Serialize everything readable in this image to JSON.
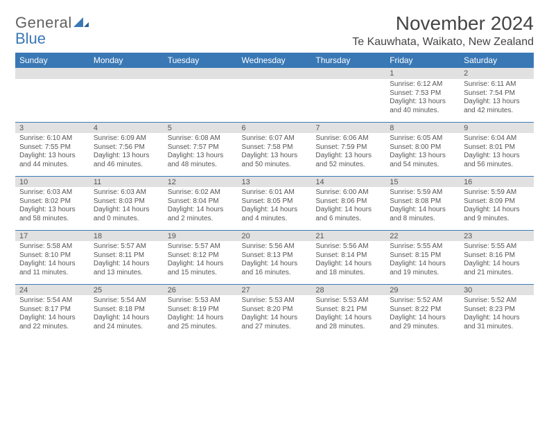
{
  "brand": {
    "line1": "General",
    "line2": "Blue"
  },
  "title": "November 2024",
  "location": "Te Kauwhata, Waikato, New Zealand",
  "colors": {
    "header_bar": "#3a78b5",
    "daynum_bg": "#e1e1e1",
    "text": "#555555",
    "brand_grey": "#606060",
    "brand_blue": "#3a78b5"
  },
  "typography": {
    "title_fontsize_pt": 21,
    "location_fontsize_pt": 12,
    "dow_fontsize_pt": 9,
    "daynum_fontsize_pt": 8.5,
    "detail_fontsize_pt": 7.5
  },
  "days_of_week": [
    "Sunday",
    "Monday",
    "Tuesday",
    "Wednesday",
    "Thursday",
    "Friday",
    "Saturday"
  ],
  "weeks": [
    [
      null,
      null,
      null,
      null,
      null,
      {
        "n": "1",
        "sr": "Sunrise: 6:12 AM",
        "ss": "Sunset: 7:53 PM",
        "d1": "Daylight: 13 hours",
        "d2": "and 40 minutes."
      },
      {
        "n": "2",
        "sr": "Sunrise: 6:11 AM",
        "ss": "Sunset: 7:54 PM",
        "d1": "Daylight: 13 hours",
        "d2": "and 42 minutes."
      }
    ],
    [
      {
        "n": "3",
        "sr": "Sunrise: 6:10 AM",
        "ss": "Sunset: 7:55 PM",
        "d1": "Daylight: 13 hours",
        "d2": "and 44 minutes."
      },
      {
        "n": "4",
        "sr": "Sunrise: 6:09 AM",
        "ss": "Sunset: 7:56 PM",
        "d1": "Daylight: 13 hours",
        "d2": "and 46 minutes."
      },
      {
        "n": "5",
        "sr": "Sunrise: 6:08 AM",
        "ss": "Sunset: 7:57 PM",
        "d1": "Daylight: 13 hours",
        "d2": "and 48 minutes."
      },
      {
        "n": "6",
        "sr": "Sunrise: 6:07 AM",
        "ss": "Sunset: 7:58 PM",
        "d1": "Daylight: 13 hours",
        "d2": "and 50 minutes."
      },
      {
        "n": "7",
        "sr": "Sunrise: 6:06 AM",
        "ss": "Sunset: 7:59 PM",
        "d1": "Daylight: 13 hours",
        "d2": "and 52 minutes."
      },
      {
        "n": "8",
        "sr": "Sunrise: 6:05 AM",
        "ss": "Sunset: 8:00 PM",
        "d1": "Daylight: 13 hours",
        "d2": "and 54 minutes."
      },
      {
        "n": "9",
        "sr": "Sunrise: 6:04 AM",
        "ss": "Sunset: 8:01 PM",
        "d1": "Daylight: 13 hours",
        "d2": "and 56 minutes."
      }
    ],
    [
      {
        "n": "10",
        "sr": "Sunrise: 6:03 AM",
        "ss": "Sunset: 8:02 PM",
        "d1": "Daylight: 13 hours",
        "d2": "and 58 minutes."
      },
      {
        "n": "11",
        "sr": "Sunrise: 6:03 AM",
        "ss": "Sunset: 8:03 PM",
        "d1": "Daylight: 14 hours",
        "d2": "and 0 minutes."
      },
      {
        "n": "12",
        "sr": "Sunrise: 6:02 AM",
        "ss": "Sunset: 8:04 PM",
        "d1": "Daylight: 14 hours",
        "d2": "and 2 minutes."
      },
      {
        "n": "13",
        "sr": "Sunrise: 6:01 AM",
        "ss": "Sunset: 8:05 PM",
        "d1": "Daylight: 14 hours",
        "d2": "and 4 minutes."
      },
      {
        "n": "14",
        "sr": "Sunrise: 6:00 AM",
        "ss": "Sunset: 8:06 PM",
        "d1": "Daylight: 14 hours",
        "d2": "and 6 minutes."
      },
      {
        "n": "15",
        "sr": "Sunrise: 5:59 AM",
        "ss": "Sunset: 8:08 PM",
        "d1": "Daylight: 14 hours",
        "d2": "and 8 minutes."
      },
      {
        "n": "16",
        "sr": "Sunrise: 5:59 AM",
        "ss": "Sunset: 8:09 PM",
        "d1": "Daylight: 14 hours",
        "d2": "and 9 minutes."
      }
    ],
    [
      {
        "n": "17",
        "sr": "Sunrise: 5:58 AM",
        "ss": "Sunset: 8:10 PM",
        "d1": "Daylight: 14 hours",
        "d2": "and 11 minutes."
      },
      {
        "n": "18",
        "sr": "Sunrise: 5:57 AM",
        "ss": "Sunset: 8:11 PM",
        "d1": "Daylight: 14 hours",
        "d2": "and 13 minutes."
      },
      {
        "n": "19",
        "sr": "Sunrise: 5:57 AM",
        "ss": "Sunset: 8:12 PM",
        "d1": "Daylight: 14 hours",
        "d2": "and 15 minutes."
      },
      {
        "n": "20",
        "sr": "Sunrise: 5:56 AM",
        "ss": "Sunset: 8:13 PM",
        "d1": "Daylight: 14 hours",
        "d2": "and 16 minutes."
      },
      {
        "n": "21",
        "sr": "Sunrise: 5:56 AM",
        "ss": "Sunset: 8:14 PM",
        "d1": "Daylight: 14 hours",
        "d2": "and 18 minutes."
      },
      {
        "n": "22",
        "sr": "Sunrise: 5:55 AM",
        "ss": "Sunset: 8:15 PM",
        "d1": "Daylight: 14 hours",
        "d2": "and 19 minutes."
      },
      {
        "n": "23",
        "sr": "Sunrise: 5:55 AM",
        "ss": "Sunset: 8:16 PM",
        "d1": "Daylight: 14 hours",
        "d2": "and 21 minutes."
      }
    ],
    [
      {
        "n": "24",
        "sr": "Sunrise: 5:54 AM",
        "ss": "Sunset: 8:17 PM",
        "d1": "Daylight: 14 hours",
        "d2": "and 22 minutes."
      },
      {
        "n": "25",
        "sr": "Sunrise: 5:54 AM",
        "ss": "Sunset: 8:18 PM",
        "d1": "Daylight: 14 hours",
        "d2": "and 24 minutes."
      },
      {
        "n": "26",
        "sr": "Sunrise: 5:53 AM",
        "ss": "Sunset: 8:19 PM",
        "d1": "Daylight: 14 hours",
        "d2": "and 25 minutes."
      },
      {
        "n": "27",
        "sr": "Sunrise: 5:53 AM",
        "ss": "Sunset: 8:20 PM",
        "d1": "Daylight: 14 hours",
        "d2": "and 27 minutes."
      },
      {
        "n": "28",
        "sr": "Sunrise: 5:53 AM",
        "ss": "Sunset: 8:21 PM",
        "d1": "Daylight: 14 hours",
        "d2": "and 28 minutes."
      },
      {
        "n": "29",
        "sr": "Sunrise: 5:52 AM",
        "ss": "Sunset: 8:22 PM",
        "d1": "Daylight: 14 hours",
        "d2": "and 29 minutes."
      },
      {
        "n": "30",
        "sr": "Sunrise: 5:52 AM",
        "ss": "Sunset: 8:23 PM",
        "d1": "Daylight: 14 hours",
        "d2": "and 31 minutes."
      }
    ]
  ]
}
